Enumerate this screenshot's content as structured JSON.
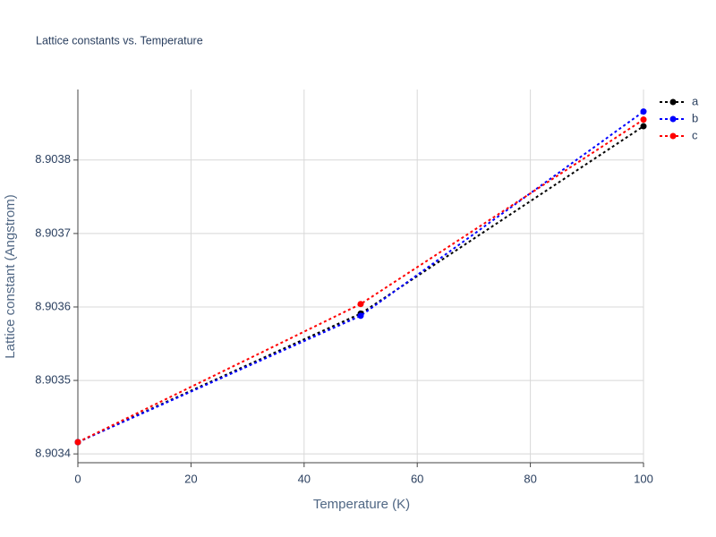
{
  "chart_data": {
    "type": "line",
    "title": "Lattice constants vs. Temperature",
    "x_label": "Temperature (K)",
    "y_label": "Lattice constant (Angstrom)",
    "x": [
      0,
      50,
      100
    ],
    "series": [
      {
        "name": "a",
        "color": "#000000",
        "values": [
          8.903416,
          8.903591,
          8.903846
        ]
      },
      {
        "name": "b",
        "color": "#0000ff",
        "values": [
          8.903416,
          8.903588,
          8.903866
        ]
      },
      {
        "name": "c",
        "color": "#ff0000",
        "values": [
          8.903416,
          8.903604,
          8.903855
        ]
      }
    ],
    "xlim": [
      0,
      100
    ],
    "xticks": [
      0,
      20,
      40,
      60,
      80,
      100
    ],
    "ylim": [
      8.903388,
      8.903896
    ],
    "yticks": [
      8.9034,
      8.9035,
      8.9036,
      8.9037,
      8.9038
    ],
    "grid": true,
    "legend": "top-right"
  }
}
